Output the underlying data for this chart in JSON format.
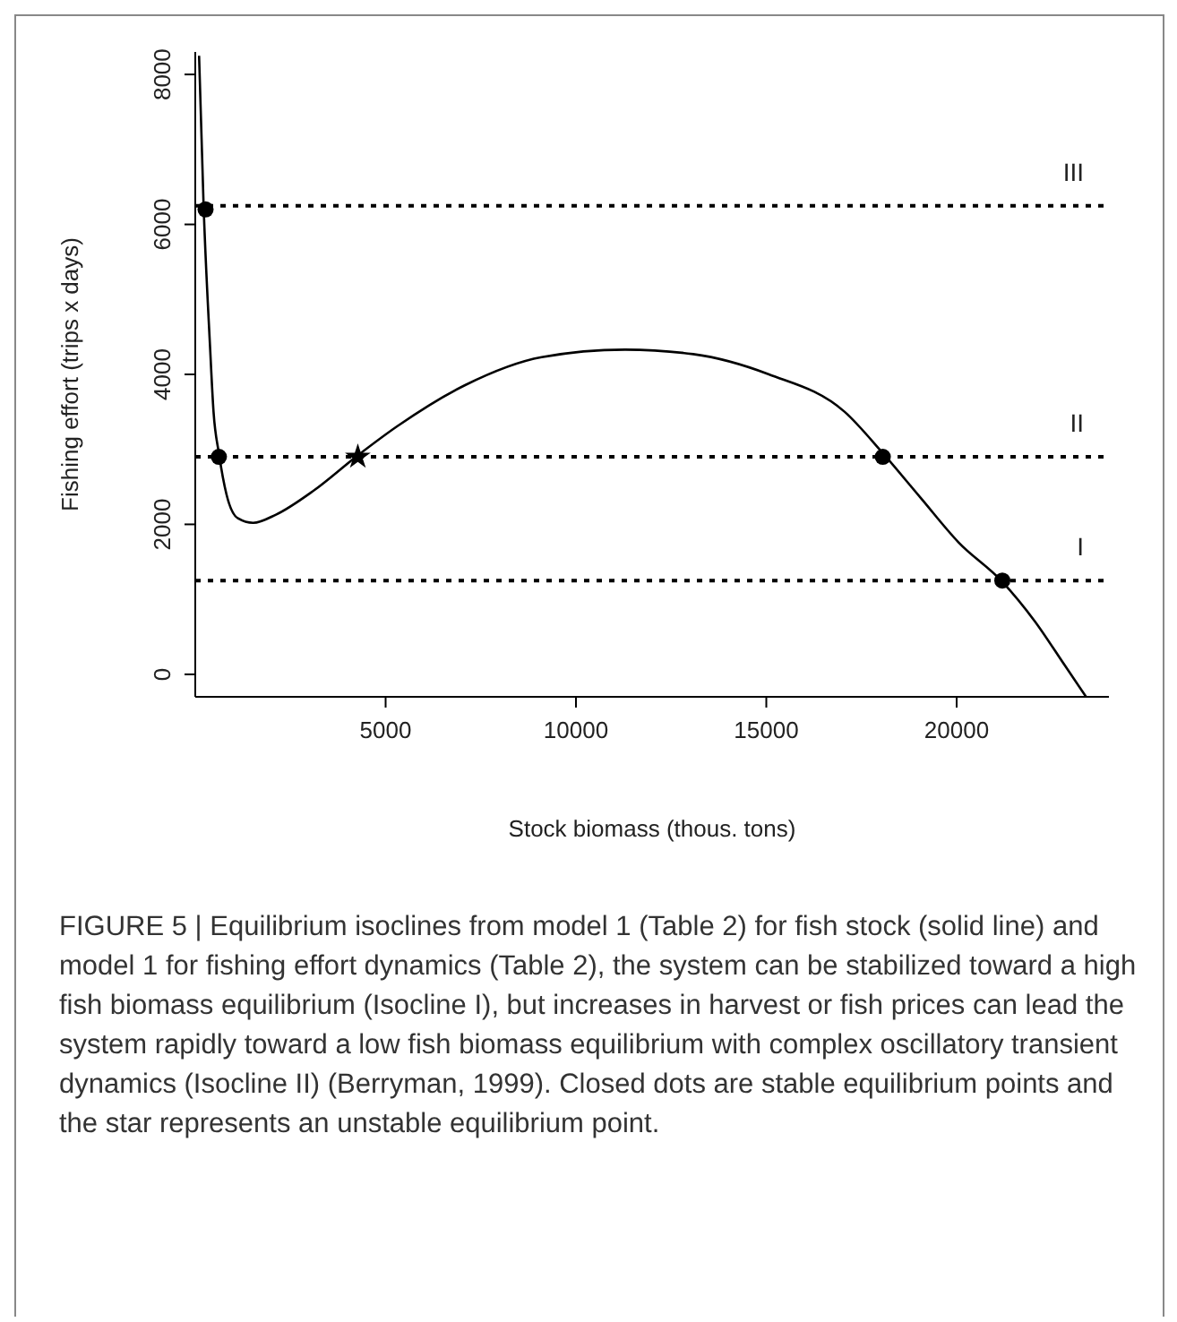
{
  "chart_data": {
    "type": "line",
    "xlabel": "Stock biomass (thous. tons)",
    "ylabel": "Fishing effort (trips x days)",
    "xlim": [
      0,
      24000
    ],
    "xticks": [
      5000,
      10000,
      15000,
      20000
    ],
    "ylim": [
      -300,
      8300
    ],
    "yticks": [
      0,
      2000,
      4000,
      6000,
      8000
    ],
    "grid": false,
    "legend": false,
    "series": [
      {
        "color": "#000000",
        "marker": "none",
        "line_style": "solid",
        "x": [
          100,
          220,
          385,
          480,
          620,
          820,
          1120,
          1520,
          2120,
          3110,
          4270,
          5310,
          7100,
          9100,
          11290,
          13080,
          15070,
          17060,
          18060,
          19060,
          20050,
          21190,
          22050,
          22840,
          23400
        ],
        "values": [
          8250,
          6230,
          4400,
          3500,
          2950,
          2400,
          2080,
          2020,
          2130,
          2450,
          2920,
          3310,
          3860,
          4230,
          4330,
          4270,
          4000,
          3500,
          2950,
          2350,
          1760,
          1240,
          710,
          120,
          -300
        ]
      },
      {
        "type": "scatter",
        "color": "#000000",
        "marker": "circle",
        "x": [
          270,
          620,
          18060,
          21200
        ],
        "values": [
          6200,
          2900,
          2900,
          1250
        ]
      },
      {
        "type": "scatter",
        "color": "#000000",
        "marker": "star",
        "x": [
          4270
        ],
        "values": [
          2900
        ]
      }
    ],
    "ref_lines": [
      {
        "axis": "y",
        "value": 6250,
        "label": "III",
        "line_style": "dotted",
        "color": "#000000"
      },
      {
        "axis": "y",
        "value": 2900,
        "label": "II",
        "line_style": "dotted",
        "color": "#000000"
      },
      {
        "axis": "y",
        "value": 1250,
        "label": "I",
        "line_style": "dotted",
        "color": "#000000"
      }
    ],
    "annotations": [
      "FIGURE 5 | Equilibrium isoclines from model 1 (Table 2) for fish stock (solid line) and model 1 for fishing effort dynamics (Table 2), the system can be stabilized toward a high fish biomass equilibrium (Isocline I), but increases in harvest or fish prices can lead the system rapidly toward a low fish biomass equilibrium with complex oscillatory transient dynamics (Isocline II) (Berryman, 1999). Closed dots are stable equilibrium points and the star represents an unstable equilibrium point."
    ]
  }
}
